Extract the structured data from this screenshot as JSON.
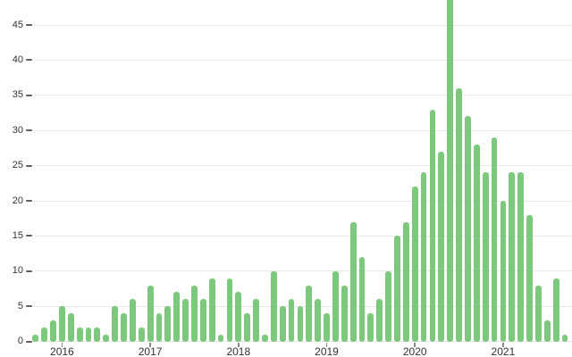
{
  "chart_data": {
    "type": "bar",
    "title": "",
    "xlabel": "",
    "ylabel": "",
    "values": [
      1,
      2,
      3,
      5,
      4,
      2,
      2,
      2,
      1,
      5,
      4,
      6,
      2,
      8,
      4,
      5,
      7,
      6,
      8,
      6,
      9,
      1,
      9,
      7,
      4,
      6,
      1,
      10,
      5,
      6,
      5,
      8,
      6,
      4,
      10,
      8,
      17,
      12,
      4,
      6,
      10,
      15,
      17,
      22,
      24,
      33,
      27,
      49,
      36,
      32,
      28,
      24,
      29,
      20,
      24,
      24,
      18,
      8,
      3,
      9,
      1
    ],
    "x_axis": {
      "tick_labels": [
        "2016",
        "2017",
        "2018",
        "2019",
        "2020",
        "2021"
      ],
      "tick_bar_indices": [
        3,
        13,
        23,
        33,
        43,
        53
      ]
    },
    "y_axis": {
      "ticks": [
        0,
        5,
        10,
        15,
        20,
        25,
        30,
        35,
        40,
        45
      ],
      "ylim": [
        0,
        50
      ]
    },
    "legend": null,
    "grid": "horizontal",
    "colors": {
      "bar": "#7cc87c",
      "gridline": "#e9e9e9",
      "axis_text": "#333333",
      "y_dash_tick": "#5f5f5f",
      "x_tick_mark": "#8a8a8a",
      "background": "#ffffff"
    }
  }
}
